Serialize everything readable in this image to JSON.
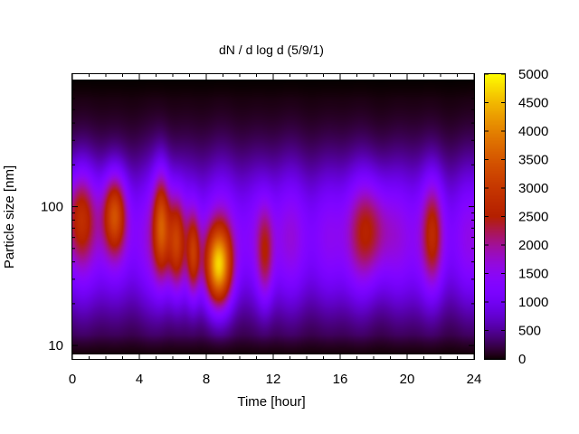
{
  "chart_data": {
    "type": "heatmap",
    "title": "dN / d log d (5/9/1)",
    "xlabel": "Time [hour]",
    "ylabel": "Particle size [nm]",
    "xlim": [
      0,
      24
    ],
    "ylim": [
      8,
      900
    ],
    "y_scale": "log",
    "x_ticks": [
      "0",
      "4",
      "8",
      "12",
      "16",
      "20",
      "24"
    ],
    "x_tick_values": [
      0,
      4,
      8,
      12,
      16,
      20,
      24
    ],
    "y_ticks": [
      "10",
      "100"
    ],
    "y_tick_values": [
      10,
      100
    ],
    "colorbar": {
      "min": 0,
      "max": 5000,
      "ticks": [
        "0",
        "500",
        "1000",
        "1500",
        "2000",
        "2500",
        "3000",
        "3500",
        "4000",
        "4500",
        "5000"
      ],
      "tick_values": [
        0,
        500,
        1000,
        1500,
        2000,
        2500,
        3000,
        3500,
        4000,
        4500,
        5000
      ],
      "colormap": "gnuplot-pm3d-rgbformulae-7-5-15"
    },
    "data_top_size": 850,
    "hotspots": [
      {
        "t": 0.5,
        "d": 90,
        "amplitude": 2300,
        "t_width": 0.9,
        "d_width": 0.32
      },
      {
        "t": 2.5,
        "d": 90,
        "amplitude": 3100,
        "t_width": 0.7,
        "d_width": 0.28
      },
      {
        "t": 5.3,
        "d": 75,
        "amplitude": 3100,
        "t_width": 0.5,
        "d_width": 0.38
      },
      {
        "t": 6.2,
        "d": 55,
        "amplitude": 2800,
        "t_width": 0.5,
        "d_width": 0.34
      },
      {
        "t": 7.2,
        "d": 45,
        "amplitude": 2700,
        "t_width": 0.4,
        "d_width": 0.3
      },
      {
        "t": 8.7,
        "d": 37,
        "amplitude": 4300,
        "t_width": 0.8,
        "d_width": 0.28
      },
      {
        "t": 11.5,
        "d": 45,
        "amplitude": 2200,
        "t_width": 0.5,
        "d_width": 0.35
      },
      {
        "t": 17.8,
        "d": 70,
        "amplitude": 2100,
        "t_width": 1.2,
        "d_width": 0.35
      },
      {
        "t": 21.5,
        "d": 65,
        "amplitude": 2200,
        "t_width": 0.6,
        "d_width": 0.38
      }
    ],
    "background_level": 1700,
    "background_peak_size": 60,
    "background_log_width": 0.55,
    "grid": false,
    "legend": "colorbar-right"
  }
}
